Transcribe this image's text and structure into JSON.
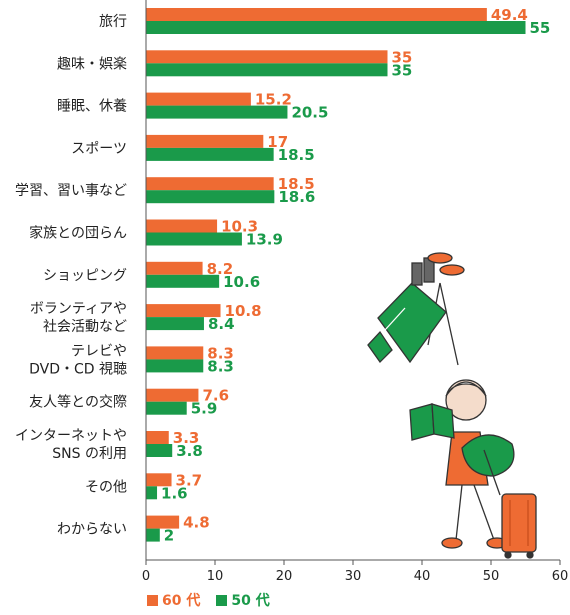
{
  "chart_data": {
    "type": "bar",
    "orientation": "horizontal",
    "categories": [
      "旅行",
      "趣味・娯楽",
      "睡眠、休養",
      "スポーツ",
      "学習、習い事など",
      "家族との団らん",
      "ショッピング",
      "ボランティアや\n社会活動など",
      "テレビや\nDVD・CD 視聴",
      "友人等との交際",
      "インターネットや\nSNS の利用",
      "その他",
      "わからない"
    ],
    "series": [
      {
        "name": "60 代",
        "color": "#EE6B33",
        "values": [
          49.4,
          35,
          15.2,
          17,
          18.5,
          10.3,
          8.2,
          10.8,
          8.3,
          7.6,
          3.3,
          3.7,
          4.8
        ]
      },
      {
        "name": "50 代",
        "color": "#1A9A4A",
        "values": [
          55,
          35,
          20.5,
          18.5,
          18.6,
          13.9,
          10.6,
          8.4,
          8.3,
          5.9,
          3.8,
          1.6,
          2
        ]
      }
    ],
    "xlim": [
      0,
      60
    ],
    "xticks": [
      0,
      10,
      20,
      30,
      40,
      50,
      60
    ],
    "legend_position": "bottom-left",
    "grid": false
  }
}
